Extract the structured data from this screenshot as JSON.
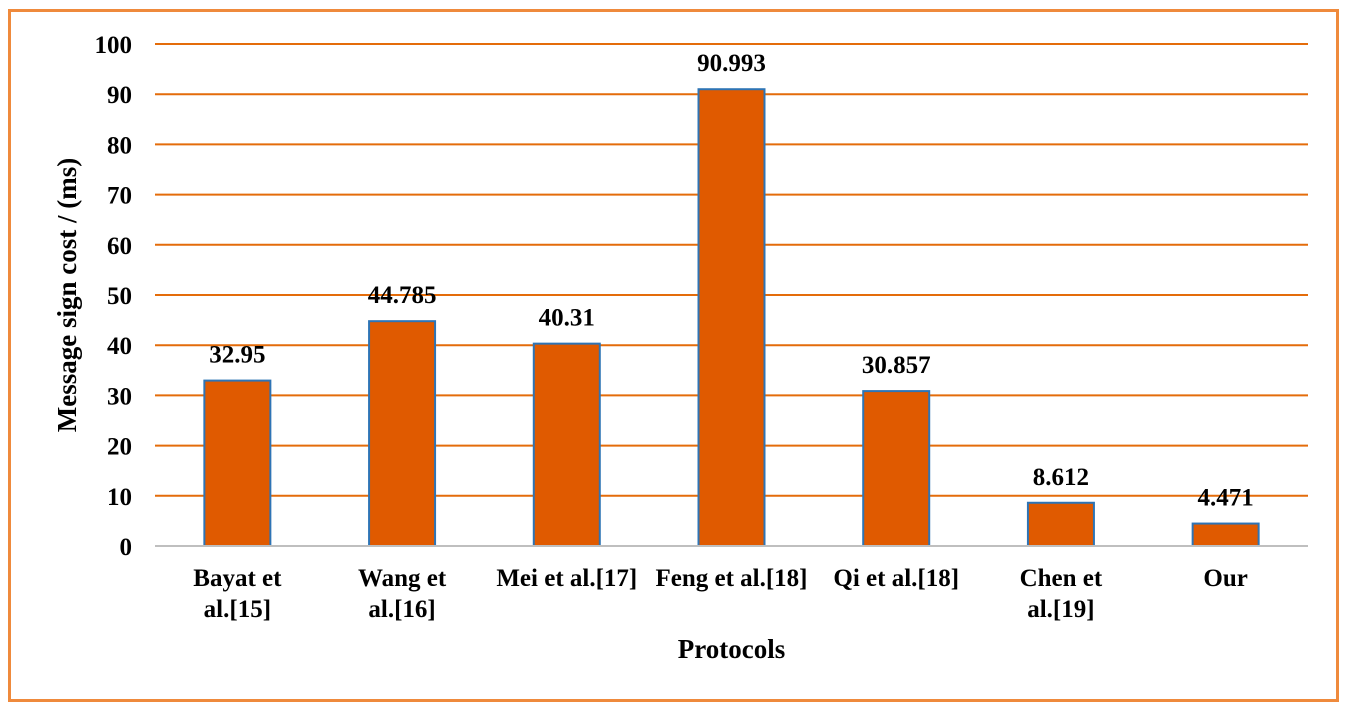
{
  "chart_data": {
    "type": "bar",
    "categories": [
      [
        "Bayat et",
        "al.[15]"
      ],
      [
        "Wang et",
        "al.[16]"
      ],
      [
        "Mei et al.[17]"
      ],
      [
        "Feng et al.[18]"
      ],
      [
        "Qi et al.[18]"
      ],
      [
        "Chen et",
        "al.[19]"
      ],
      [
        "Our"
      ]
    ],
    "values": [
      32.95,
      44.785,
      40.31,
      90.993,
      30.857,
      8.612,
      4.471
    ],
    "value_labels": [
      "32.95",
      "44.785",
      "40.31",
      "90.993",
      "30.857",
      "8.612",
      "4.471"
    ],
    "title": "",
    "xlabel": "Protocols",
    "ylabel": "Message sign cost / (ms)",
    "ylim": [
      0,
      100
    ],
    "yticks": [
      0,
      10,
      20,
      30,
      40,
      50,
      60,
      70,
      80,
      90,
      100
    ],
    "grid": true,
    "legend": "none",
    "colors": {
      "bar_fill": "#e05a00",
      "bar_stroke": "#2e74b5",
      "gridline": "#e46c0a",
      "axis": "#bfbfbf",
      "frame": "#ef8a3c"
    }
  }
}
